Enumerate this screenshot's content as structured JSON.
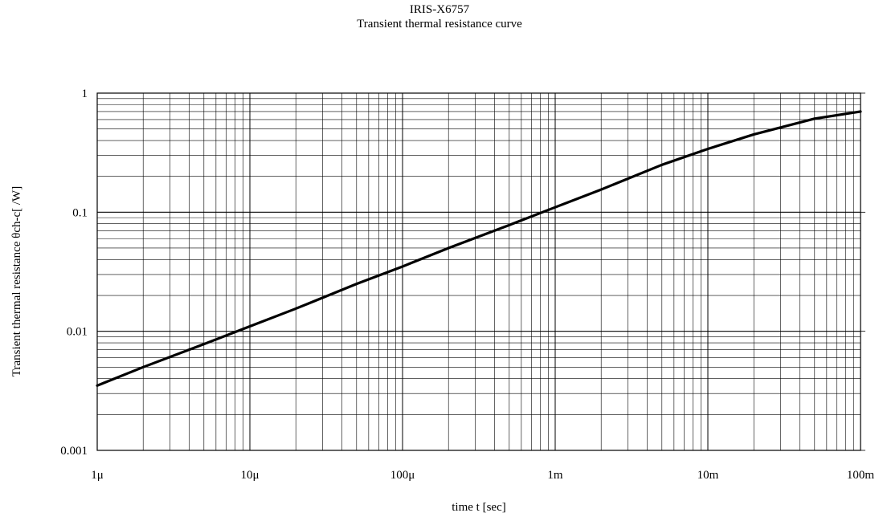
{
  "chart_data": {
    "type": "line",
    "title": "IRIS-X6757",
    "subtitle": "Transient thermal resistance curve",
    "xlabel": "time t [sec]",
    "ylabel": "Transient thermal resistance θch-c[    /W]",
    "x_scale": "log",
    "y_scale": "log",
    "xlim": [
      1e-06,
      0.1
    ],
    "ylim": [
      0.001,
      1
    ],
    "grid": true,
    "x_ticks": [
      {
        "value": 1e-06,
        "label": "1μ"
      },
      {
        "value": 1e-05,
        "label": "10μ"
      },
      {
        "value": 0.0001,
        "label": "100μ"
      },
      {
        "value": 0.001,
        "label": "1m"
      },
      {
        "value": 0.01,
        "label": "10m"
      },
      {
        "value": 0.1,
        "label": "100m"
      }
    ],
    "y_ticks": [
      {
        "value": 0.001,
        "label": "0.001"
      },
      {
        "value": 0.01,
        "label": "0.01"
      },
      {
        "value": 0.1,
        "label": "0.1"
      },
      {
        "value": 1,
        "label": "1"
      }
    ],
    "series": [
      {
        "color": "#000000",
        "x": [
          1e-06,
          2e-06,
          5e-06,
          1e-05,
          2e-05,
          5e-05,
          0.0001,
          0.0002,
          0.0005,
          0.001,
          0.002,
          0.005,
          0.01,
          0.02,
          0.05,
          0.1
        ],
        "y": [
          0.0035,
          0.005,
          0.0078,
          0.011,
          0.0155,
          0.025,
          0.035,
          0.05,
          0.078,
          0.11,
          0.155,
          0.25,
          0.34,
          0.45,
          0.61,
          0.7
        ]
      }
    ]
  }
}
